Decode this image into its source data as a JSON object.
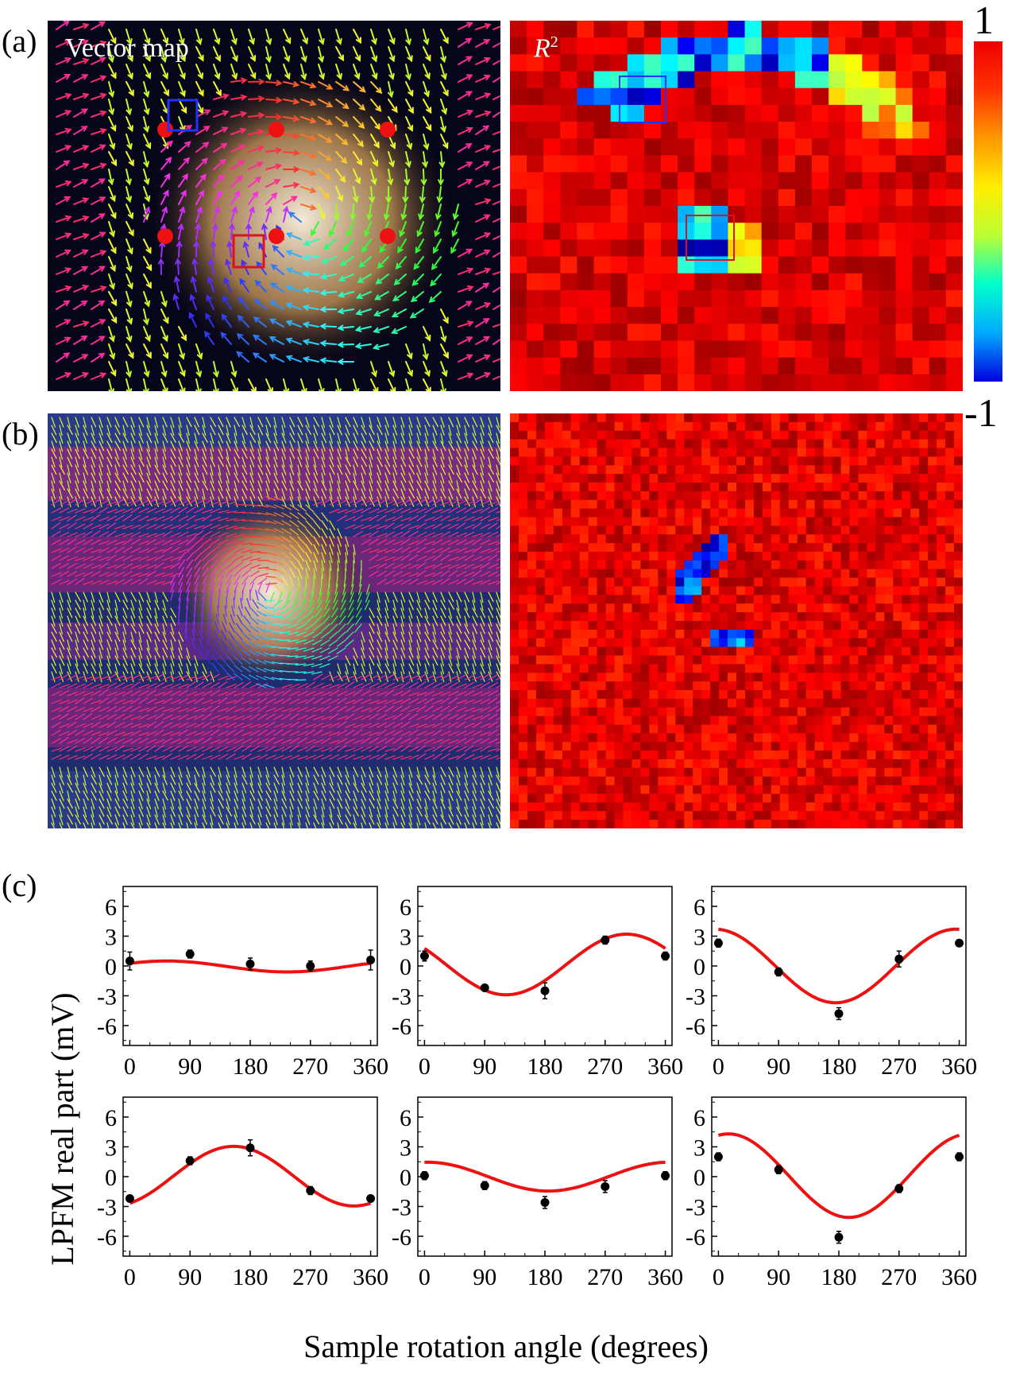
{
  "panels": {
    "a_label": "(a)",
    "b_label": "(b)",
    "c_label": "(c)"
  },
  "maps": {
    "vector_title": "Vector map",
    "r2_title": "R",
    "r2_sup": "2"
  },
  "colorbar": {
    "max_label": "1",
    "min_label": "-1",
    "colors": [
      "#0000dd",
      "#00aaff",
      "#00ffcc",
      "#bbff33",
      "#ffee00",
      "#ff9900",
      "#ff3300",
      "#ee0000"
    ]
  },
  "colors": {
    "fit_curve": "#ee1111",
    "data_point": "#000000",
    "marker_dots": "#ee1111",
    "roi_blue": "#2233ff",
    "roi_red": "#dd1122"
  },
  "chart_data": [
    {
      "type": "scatter+line",
      "x": [
        0,
        90,
        180,
        270,
        360
      ],
      "values": [
        0.5,
        1.2,
        0.2,
        0.0,
        0.6
      ],
      "errors": [
        0.9,
        0.4,
        0.6,
        0.5,
        1.0
      ],
      "fit": {
        "mean": -0.05,
        "amp": 0.55,
        "phase": 55
      },
      "xlim": [
        -10,
        370
      ],
      "ylim": [
        -8,
        8
      ],
      "xticks": [
        0,
        90,
        180,
        270,
        360
      ],
      "yticks": [
        -6,
        -3,
        0,
        3,
        6
      ]
    },
    {
      "type": "scatter+line",
      "x": [
        0,
        90,
        180,
        270,
        360
      ],
      "values": [
        1.0,
        -2.2,
        -2.5,
        2.6,
        1.0
      ],
      "errors": [
        0.5,
        0.3,
        0.8,
        0.4,
        0.4
      ],
      "fit": {
        "mean": 0.15,
        "amp": 3.05,
        "phase": 302
      },
      "xlim": [
        -10,
        370
      ],
      "ylim": [
        -8,
        8
      ],
      "xticks": [
        0,
        90,
        180,
        270,
        360
      ],
      "yticks": [
        -6,
        -3,
        0,
        3,
        6
      ]
    },
    {
      "type": "scatter+line",
      "x": [
        0,
        90,
        180,
        270,
        360
      ],
      "values": [
        2.3,
        -0.6,
        -4.8,
        0.7,
        2.3
      ],
      "errors": [
        0.4,
        0.4,
        0.6,
        0.8,
        0.3
      ],
      "fit": {
        "mean": 0.0,
        "amp": 3.7,
        "phase": 355
      },
      "xlim": [
        -10,
        370
      ],
      "ylim": [
        -8,
        8
      ],
      "xticks": [
        0,
        90,
        180,
        270,
        360
      ],
      "yticks": [
        -6,
        -3,
        0,
        3,
        6
      ]
    },
    {
      "type": "scatter+line",
      "x": [
        0,
        90,
        180,
        270,
        360
      ],
      "values": [
        -2.2,
        1.6,
        2.9,
        -1.4,
        -2.2
      ],
      "errors": [
        0.3,
        0.4,
        0.8,
        0.4,
        0.3
      ],
      "fit": {
        "mean": 0.05,
        "amp": 3.0,
        "phase": 155
      },
      "xlim": [
        -10,
        370
      ],
      "ylim": [
        -8,
        8
      ],
      "xticks": [
        0,
        90,
        180,
        270,
        360
      ],
      "yticks": [
        -6,
        -3,
        0,
        3,
        6
      ]
    },
    {
      "type": "scatter+line",
      "x": [
        0,
        90,
        180,
        270,
        360
      ],
      "values": [
        0.1,
        -0.9,
        -2.6,
        -1.0,
        0.1
      ],
      "errors": [
        0.4,
        0.4,
        0.6,
        0.6,
        0.4
      ],
      "fit": {
        "mean": 0.0,
        "amp": 1.45,
        "phase": 5
      },
      "xlim": [
        -10,
        370
      ],
      "ylim": [
        -8,
        8
      ],
      "xticks": [
        0,
        90,
        180,
        270,
        360
      ],
      "yticks": [
        -6,
        -3,
        0,
        3,
        6
      ]
    },
    {
      "type": "scatter+line",
      "x": [
        0,
        90,
        180,
        270,
        360
      ],
      "values": [
        2.0,
        0.7,
        -6.1,
        -1.2,
        2.0
      ],
      "errors": [
        0.4,
        0.4,
        0.6,
        0.4,
        0.4
      ],
      "fit": {
        "mean": 0.1,
        "amp": 4.2,
        "phase": 15
      },
      "xlim": [
        -10,
        370
      ],
      "ylim": [
        -8,
        8
      ],
      "xticks": [
        0,
        90,
        180,
        270,
        360
      ],
      "yticks": [
        -6,
        -3,
        0,
        3,
        6
      ]
    }
  ],
  "axes": {
    "ylabel": "LPFM real part (mV)",
    "xlabel": "Sample rotation angle (degrees)"
  }
}
